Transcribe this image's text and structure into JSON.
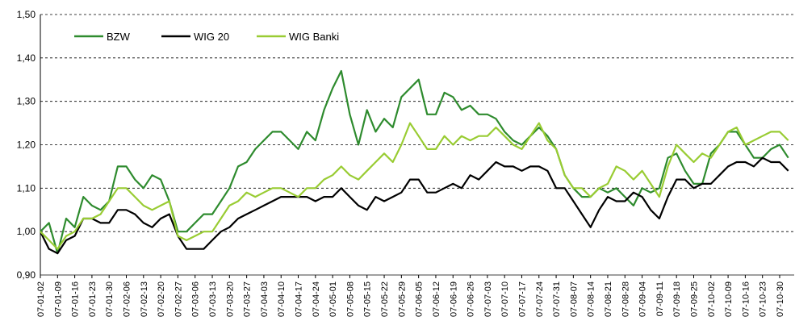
{
  "chart_data": {
    "type": "line",
    "categories": [
      "07-01-02",
      null,
      "07-01-09",
      null,
      "07-01-16",
      null,
      "07-01-23",
      null,
      "07-01-30",
      null,
      "07-02-06",
      null,
      "07-02-13",
      null,
      "07-02-20",
      null,
      "07-02-27",
      null,
      "07-03-06",
      null,
      "07-03-13",
      null,
      "07-03-20",
      null,
      "07-03-27",
      null,
      "07-04-03",
      null,
      "07-04-10",
      null,
      "07-04-17",
      null,
      "07-04-24",
      null,
      "07-05-01",
      null,
      "07-05-08",
      null,
      "07-05-15",
      null,
      "07-05-22",
      null,
      "07-05-29",
      null,
      "07-06-05",
      null,
      "07-06-12",
      null,
      "07-06-19",
      null,
      "07-06-26",
      null,
      "07-07-03",
      null,
      "07-07-10",
      null,
      "07-07-17",
      null,
      "07-07-24",
      null,
      "07-07-31",
      null,
      "07-08-07",
      null,
      "07-08-14",
      null,
      "07-08-21",
      null,
      "07-08-28",
      null,
      "07-09-04",
      null,
      "07-09-11",
      null,
      "07-09-18",
      null,
      "07-09-25",
      null,
      "07-10-02",
      null,
      "07-10-09",
      null,
      "07-10-16",
      null,
      "07-10-23",
      null,
      "07-10-30",
      null
    ],
    "series": [
      {
        "name": "BZW",
        "color": "#2e8b2e",
        "values": [
          1.0,
          1.02,
          0.95,
          1.03,
          1.01,
          1.08,
          1.06,
          1.05,
          1.07,
          1.15,
          1.15,
          1.12,
          1.1,
          1.13,
          1.12,
          1.07,
          1.0,
          1.0,
          1.02,
          1.04,
          1.04,
          1.07,
          1.1,
          1.15,
          1.16,
          1.19,
          1.21,
          1.23,
          1.23,
          1.21,
          1.19,
          1.23,
          1.21,
          1.28,
          1.33,
          1.37,
          1.27,
          1.2,
          1.28,
          1.23,
          1.26,
          1.24,
          1.31,
          1.33,
          1.35,
          1.27,
          1.27,
          1.32,
          1.31,
          1.28,
          1.29,
          1.27,
          1.27,
          1.26,
          1.23,
          1.21,
          1.2,
          1.22,
          1.24,
          1.22,
          1.19,
          1.13,
          1.1,
          1.08,
          1.08,
          1.1,
          1.09,
          1.1,
          1.08,
          1.06,
          1.1,
          1.09,
          1.1,
          1.17,
          1.18,
          1.14,
          1.11,
          1.11,
          1.18,
          1.2,
          1.23,
          1.23,
          1.2,
          1.17,
          1.17,
          1.19,
          1.2,
          1.17
        ]
      },
      {
        "name": "WIG 20",
        "color": "#000000",
        "values": [
          1.0,
          0.96,
          0.95,
          0.98,
          0.99,
          1.03,
          1.03,
          1.02,
          1.02,
          1.05,
          1.05,
          1.04,
          1.02,
          1.01,
          1.03,
          1.04,
          0.99,
          0.96,
          0.96,
          0.96,
          0.98,
          1.0,
          1.01,
          1.03,
          1.04,
          1.05,
          1.06,
          1.07,
          1.08,
          1.08,
          1.08,
          1.08,
          1.07,
          1.08,
          1.08,
          1.1,
          1.08,
          1.06,
          1.05,
          1.08,
          1.07,
          1.08,
          1.09,
          1.12,
          1.12,
          1.09,
          1.09,
          1.1,
          1.11,
          1.1,
          1.13,
          1.12,
          1.14,
          1.16,
          1.15,
          1.15,
          1.14,
          1.15,
          1.15,
          1.14,
          1.1,
          1.1,
          1.07,
          1.04,
          1.01,
          1.05,
          1.08,
          1.07,
          1.07,
          1.09,
          1.08,
          1.05,
          1.03,
          1.08,
          1.12,
          1.12,
          1.1,
          1.11,
          1.11,
          1.13,
          1.15,
          1.16,
          1.16,
          1.15,
          1.17,
          1.16,
          1.16,
          1.14
        ]
      },
      {
        "name": "WIG Banki",
        "color": "#99cc33",
        "values": [
          1.0,
          0.98,
          0.96,
          0.99,
          1.0,
          1.03,
          1.03,
          1.04,
          1.07,
          1.1,
          1.1,
          1.08,
          1.06,
          1.05,
          1.06,
          1.07,
          0.99,
          0.98,
          0.99,
          1.0,
          1.0,
          1.03,
          1.06,
          1.07,
          1.09,
          1.08,
          1.09,
          1.1,
          1.1,
          1.09,
          1.08,
          1.1,
          1.1,
          1.12,
          1.13,
          1.15,
          1.13,
          1.12,
          1.14,
          1.16,
          1.18,
          1.16,
          1.2,
          1.25,
          1.22,
          1.19,
          1.19,
          1.22,
          1.2,
          1.22,
          1.21,
          1.22,
          1.22,
          1.24,
          1.22,
          1.2,
          1.19,
          1.22,
          1.25,
          1.21,
          1.19,
          1.13,
          1.1,
          1.1,
          1.08,
          1.1,
          1.11,
          1.15,
          1.14,
          1.12,
          1.14,
          1.11,
          1.08,
          1.15,
          1.2,
          1.18,
          1.16,
          1.18,
          1.17,
          1.2,
          1.23,
          1.24,
          1.2,
          1.21,
          1.22,
          1.23,
          1.23,
          1.21
        ]
      }
    ],
    "ylim": [
      0.9,
      1.5
    ],
    "yticks": [
      {
        "value": 0.9,
        "label": "0,90"
      },
      {
        "value": 1.0,
        "label": "1,00"
      },
      {
        "value": 1.1,
        "label": "1,10"
      },
      {
        "value": 1.2,
        "label": "1,20"
      },
      {
        "value": 1.3,
        "label": "1,30"
      },
      {
        "value": 1.4,
        "label": "1,40"
      },
      {
        "value": 1.5,
        "label": "1,50"
      }
    ],
    "grid": true,
    "legend": "upper left"
  }
}
